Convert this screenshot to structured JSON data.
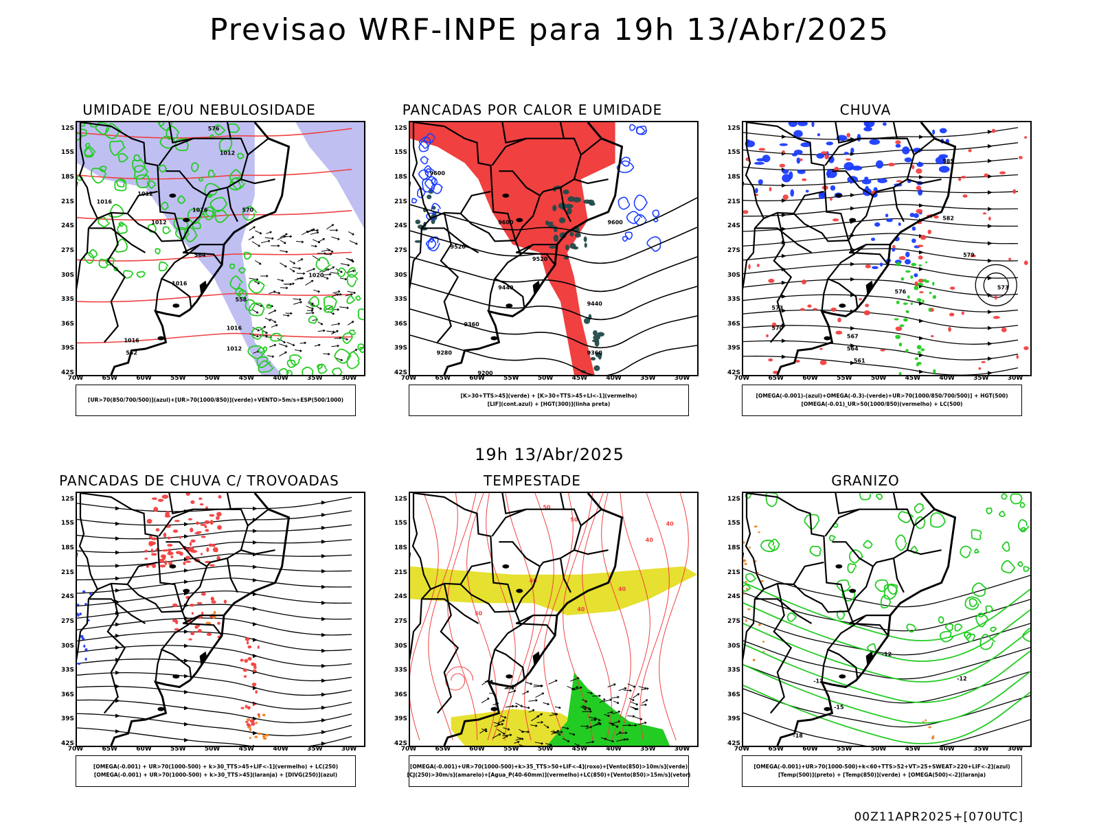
{
  "header": {
    "title": "Previsao WRF-INPE  para 19h 13/Abr/2025",
    "mid_title": "19h 13/Abr/2025",
    "footer": "00Z11APR2025+[070UTC]"
  },
  "axes": {
    "lat_labels": [
      "12S",
      "15S",
      "18S",
      "21S",
      "24S",
      "27S",
      "30S",
      "33S",
      "36S",
      "39S",
      "42S"
    ],
    "lon_labels": [
      "70W",
      "65W",
      "60W",
      "55W",
      "50W",
      "45W",
      "40W",
      "35W",
      "30W"
    ]
  },
  "colors": {
    "blue": "#1a3cff",
    "lightblue": "#b4b4f0",
    "green": "#22cc22",
    "red": "#f04040",
    "darkteal": "#224a4a",
    "yellow": "#e6e030",
    "orange": "#f08020",
    "black": "#000000"
  },
  "panels": [
    {
      "id": "umidade",
      "title": "UMIDADE E/OU NEBULOSIDADE",
      "legend": [
        "[UR>70(850/700/500)](azul)+[UR>70(1000/850)](verde)+VENTO>5m/s+ESP(500/1000)"
      ],
      "contour_labels": [
        "1012",
        "1012",
        "1016",
        "1016",
        "1012",
        "1016",
        "1016",
        "1020",
        "1016",
        "1012",
        "576",
        "570",
        "564",
        "558",
        "552"
      ]
    },
    {
      "id": "pancadas-calor",
      "title": "PANCADAS POR CALOR E UMIDADE",
      "legend": [
        "[K>30+TTS>45](verde) + [K>30+TTS>45+LI<-1](vermelho)",
        "[LIF](cont.azul) + [HGT(300)](linha preta)"
      ],
      "contour_labels": [
        "9600",
        "9600",
        "9600",
        "9520",
        "9520",
        "9440",
        "9440",
        "9360",
        "9360",
        "9280",
        "9200"
      ]
    },
    {
      "id": "chuva",
      "title": "CHUVA",
      "legend": [
        "[OMEGA(-0.001)-(azul)+OMEGA(-0.3)-(verde)+UR>70(1000/850/700/500)] + HGT(500)",
        "[OMEGA(-0.01)_UR>50(1000/850)(vermelho) + LC(500)"
      ],
      "contour_labels": [
        "585",
        "582",
        "579",
        "576",
        "573",
        "570",
        "567",
        "564",
        "561",
        "573"
      ]
    },
    {
      "id": "trovoadas",
      "title": "PANCADAS DE CHUVA C/ TROVOADAS",
      "legend": [
        "[OMEGA(-0.001) + UR>70(1000-500) + k>30_TTS>45+LIF<-1](vermelho) + LC(250)",
        "[OMEGA(-0.001) + UR>70(1000-500) + k>30_TTS>45](laranja) + [DIVG(250)](azul)"
      ],
      "contour_labels": []
    },
    {
      "id": "tempestade",
      "title": "TEMPESTADE",
      "legend": [
        "[OMEGA(-0.001)+UR>70(1000-500)+k>35_TTS>50+LIF<-4](roxo)+[Vento(850)>10m/s](verde)",
        "[CJ(250)>30m/s](amarelo)+[Agua_P(40-60mm)](vermelho)+LC(850)+[Vento(850)>15m/s](vetor)"
      ],
      "contour_labels": [
        "50",
        "50",
        "40",
        "40",
        "40",
        "50",
        "40",
        "40"
      ]
    },
    {
      "id": "granizo",
      "title": "GRANIZO",
      "legend": [
        "[OMEGA(-0.001)+UR>70(1000-500)+k<60+TTS>52+VT>25+SWEAT>220+LIF<-2](azul)",
        "[Temp(500)](preto) + [Temp(850)](verde) + [OMEGA(500)<-2](laranja)"
      ],
      "contour_labels": [
        "-12",
        "-12",
        "-12",
        "-15",
        "-18"
      ]
    }
  ]
}
